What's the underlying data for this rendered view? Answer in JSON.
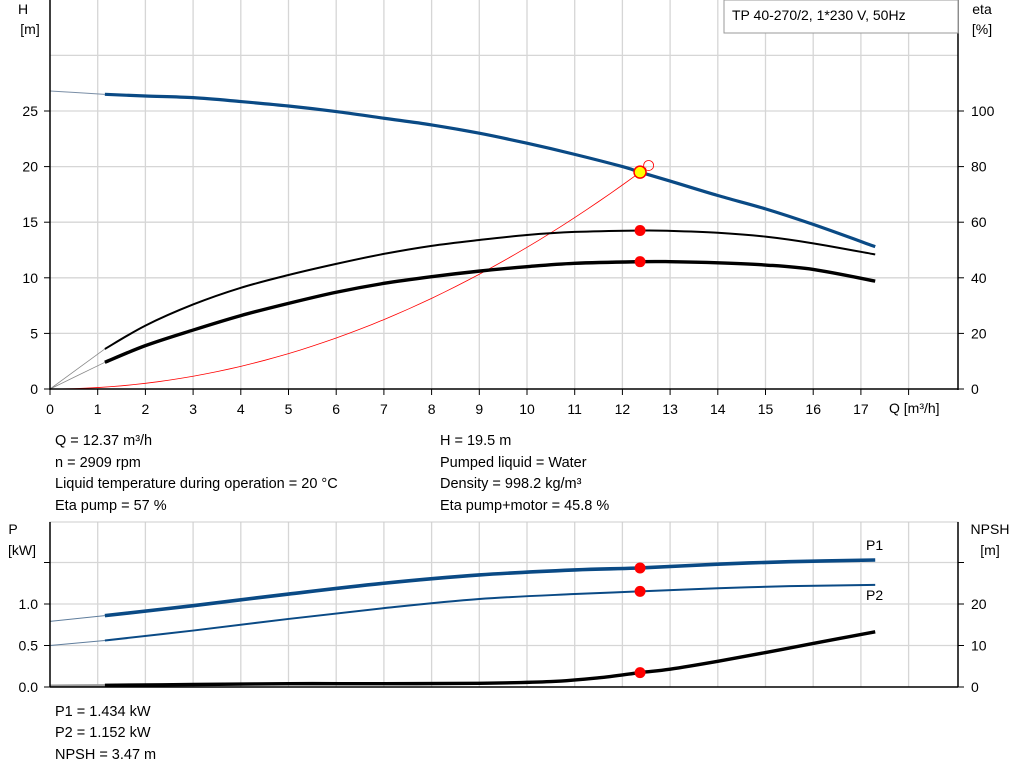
{
  "chart_data": [
    {
      "type": "line",
      "panel": "head-efficiency",
      "title_box": "TP 40-270/2, 1*230 V, 50Hz",
      "xlabel": "Q [m³/h]",
      "ylabel_left": [
        "H",
        "[m]"
      ],
      "ylabel_right": [
        "eta",
        "[%]"
      ],
      "xlim": [
        0,
        18.5
      ],
      "ylim_left": [
        0,
        30
      ],
      "ylim_right": [
        0,
        120
      ],
      "x_ticks": [
        "0",
        "1",
        "2",
        "3",
        "4",
        "5",
        "6",
        "7",
        "8",
        "9",
        "10",
        "11",
        "12",
        "13",
        "14",
        "15",
        "16",
        "17"
      ],
      "y_ticks_left": [
        "0",
        "5",
        "10",
        "15",
        "20",
        "25"
      ],
      "y_ticks_right": [
        "0",
        "20",
        "40",
        "60",
        "80",
        "100"
      ],
      "grid": true,
      "colors": {
        "head": "#0a4a85",
        "system": "#ff0000",
        "eta": "#000000",
        "operating_point": "#ffff00",
        "duty_marker": "#ff0000"
      },
      "series": [
        {
          "key": "head",
          "axis": "left",
          "extrapolated": [
            [
              0,
              26.8
            ],
            [
              1.15,
              26.5
            ]
          ],
          "points": [
            [
              1.15,
              26.5
            ],
            [
              2,
              26.35
            ],
            [
              3,
              26.2
            ],
            [
              4,
              25.85
            ],
            [
              5,
              25.45
            ],
            [
              6,
              24.95
            ],
            [
              7,
              24.35
            ],
            [
              8,
              23.75
            ],
            [
              9,
              23.0
            ],
            [
              10,
              22.1
            ],
            [
              11,
              21.1
            ],
            [
              12,
              20.0
            ],
            [
              12.37,
              19.5
            ],
            [
              13,
              18.7
            ],
            [
              14,
              17.4
            ],
            [
              15,
              16.2
            ],
            [
              16,
              14.8
            ],
            [
              17.3,
              12.8
            ]
          ]
        },
        {
          "key": "eta-pump",
          "axis": "right",
          "extrapolated": [
            [
              0,
              0
            ],
            [
              1.15,
              14.4
            ]
          ],
          "points": [
            [
              1.15,
              14.4
            ],
            [
              2,
              22.8
            ],
            [
              3,
              30.4
            ],
            [
              4,
              36.4
            ],
            [
              5,
              41
            ],
            [
              6,
              45
            ],
            [
              7,
              48.6
            ],
            [
              8,
              51.5
            ],
            [
              9,
              53.6
            ],
            [
              10,
              55.4
            ],
            [
              11,
              56.5
            ],
            [
              12.37,
              57
            ],
            [
              13,
              56.9
            ],
            [
              14,
              56.2
            ],
            [
              15,
              54.8
            ],
            [
              16,
              52.4
            ],
            [
              17.3,
              48.4
            ]
          ]
        },
        {
          "key": "eta-pump-motor",
          "axis": "right",
          "extrapolated": [
            [
              0,
              0
            ],
            [
              1.15,
              9.6
            ]
          ],
          "points": [
            [
              1.15,
              9.6
            ],
            [
              2,
              15.6
            ],
            [
              3,
              21.2
            ],
            [
              4,
              26.4
            ],
            [
              5,
              30.8
            ],
            [
              6,
              34.8
            ],
            [
              7,
              38
            ],
            [
              8,
              40.4
            ],
            [
              9,
              42.4
            ],
            [
              10,
              44
            ],
            [
              11,
              45.2
            ],
            [
              12.37,
              45.8
            ],
            [
              13,
              45.8
            ],
            [
              14,
              45.4
            ],
            [
              15,
              44.6
            ],
            [
              16,
              43
            ],
            [
              17.3,
              38.8
            ]
          ]
        },
        {
          "key": "system-curve",
          "axis": "left",
          "equation": "H = 0.1274·Q²",
          "q_range": [
            0,
            12.5
          ]
        }
      ],
      "operating_point": {
        "Q": 12.37,
        "H": 19.5
      },
      "duty_markers": [
        {
          "axis": "right",
          "Q": 12.37,
          "value": 57
        },
        {
          "axis": "right",
          "Q": 12.37,
          "value": 45.8
        }
      ]
    },
    {
      "type": "line",
      "panel": "power-npsh",
      "ylabel_left": [
        "P",
        "[kW]"
      ],
      "ylabel_right": [
        "NPSH",
        "[m]"
      ],
      "xlim": [
        0,
        18.5
      ],
      "ylim_left": [
        0,
        2.0
      ],
      "ylim_right": [
        0,
        40
      ],
      "y_ticks_left": [
        "0.0",
        "0.5",
        "1.0",
        ""
      ],
      "y_ticks_right": [
        "0",
        "10",
        "20",
        ""
      ],
      "grid": true,
      "series": [
        {
          "name": "P1",
          "axis": "left",
          "color": "#0a4a85",
          "extrapolated": [
            [
              0,
              0.79
            ],
            [
              1.15,
              0.86
            ]
          ],
          "points": [
            [
              1.15,
              0.86
            ],
            [
              3,
              0.98
            ],
            [
              5,
              1.12
            ],
            [
              7,
              1.25
            ],
            [
              9,
              1.35
            ],
            [
              11,
              1.41
            ],
            [
              12.37,
              1.434
            ],
            [
              14,
              1.48
            ],
            [
              15.5,
              1.51
            ],
            [
              17.3,
              1.53
            ]
          ]
        },
        {
          "name": "P2",
          "axis": "left",
          "color": "#0a4a85",
          "extrapolated": [
            [
              0,
              0.5
            ],
            [
              1.15,
              0.56
            ]
          ],
          "points": [
            [
              1.15,
              0.56
            ],
            [
              3,
              0.68
            ],
            [
              5,
              0.82
            ],
            [
              7,
              0.95
            ],
            [
              9,
              1.06
            ],
            [
              11,
              1.12
            ],
            [
              12.37,
              1.152
            ],
            [
              14,
              1.19
            ],
            [
              15.5,
              1.215
            ],
            [
              17.3,
              1.23
            ]
          ]
        },
        {
          "key": "npsh",
          "axis": "right",
          "color": "#000000",
          "extrapolated": [
            [
              0,
              0.3
            ],
            [
              1.15,
              0.4
            ]
          ],
          "points": [
            [
              1.15,
              0.4
            ],
            [
              3,
              0.6
            ],
            [
              5,
              0.8
            ],
            [
              7,
              0.8
            ],
            [
              9,
              0.9
            ],
            [
              10.5,
              1.3
            ],
            [
              11.5,
              2.2
            ],
            [
              12.37,
              3.47
            ],
            [
              13,
              4.3
            ],
            [
              14,
              6.2
            ],
            [
              15,
              8.3
            ],
            [
              16,
              10.5
            ],
            [
              17.3,
              13.3
            ]
          ]
        }
      ],
      "duty_markers": [
        {
          "axis": "left",
          "Q": 12.37,
          "value": 1.434
        },
        {
          "axis": "left",
          "Q": 12.37,
          "value": 1.152
        },
        {
          "axis": "right",
          "Q": 12.37,
          "value": 3.47
        }
      ]
    }
  ],
  "info_top": {
    "left": [
      "Q = 12.37 m³/h",
      "n = 2909 rpm",
      "Liquid temperature during operation = 20 °C",
      "Eta pump = 57 %"
    ],
    "right": [
      "H = 19.5 m",
      "Pumped liquid = Water",
      "Density = 998.2 kg/m³",
      "Eta pump+motor = 45.8 %"
    ]
  },
  "info_bottom": [
    "P1 = 1.434 kW",
    "P2 = 1.152 kW",
    "NPSH = 3.47 m"
  ]
}
